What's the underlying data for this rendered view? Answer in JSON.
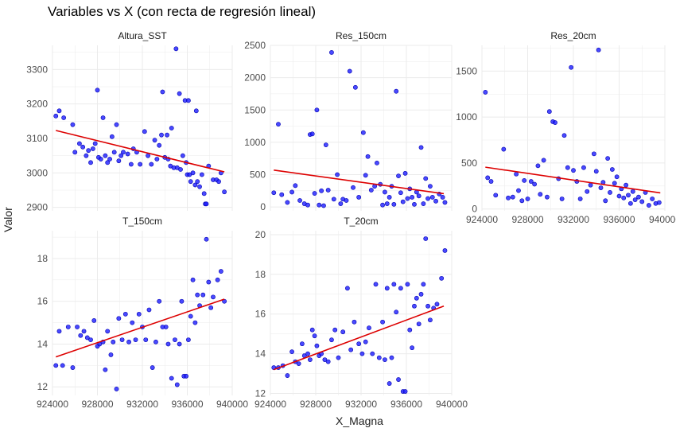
{
  "title": "Variables vs X (con recta de regresión lineal)",
  "xlabel": "X_Magna",
  "ylabel": "Valor",
  "colors": {
    "points": "#1c1cff",
    "point_edge": "#0000b0",
    "regression": "#dd0000",
    "grid": "#ebebeb"
  },
  "chart_data": [
    {
      "type": "scatter",
      "title": "Altura_SST",
      "xlim": [
        924000,
        940000
      ],
      "ylim": [
        2890,
        3370
      ],
      "xticks": [],
      "yticks": [
        2900,
        3000,
        3100,
        3200,
        3300
      ],
      "regression": [
        [
          924300,
          3123
        ],
        [
          939300,
          3003
        ]
      ],
      "points": [
        [
          924300,
          3165
        ],
        [
          924600,
          3180
        ],
        [
          925000,
          3160
        ],
        [
          925800,
          3140
        ],
        [
          926000,
          3060
        ],
        [
          926400,
          3085
        ],
        [
          926700,
          3075
        ],
        [
          927000,
          3050
        ],
        [
          927200,
          3065
        ],
        [
          927400,
          3030
        ],
        [
          927600,
          3070
        ],
        [
          927800,
          3085
        ],
        [
          928000,
          3240
        ],
        [
          928100,
          3045
        ],
        [
          928300,
          3040
        ],
        [
          928500,
          3160
        ],
        [
          928700,
          3050
        ],
        [
          928900,
          3030
        ],
        [
          929100,
          3040
        ],
        [
          929300,
          3105
        ],
        [
          929500,
          3060
        ],
        [
          929700,
          3140
        ],
        [
          929900,
          3035
        ],
        [
          930100,
          3050
        ],
        [
          930300,
          3060
        ],
        [
          930700,
          3055
        ],
        [
          931000,
          3025
        ],
        [
          931200,
          3070
        ],
        [
          931500,
          3060
        ],
        [
          931800,
          3025
        ],
        [
          932200,
          3120
        ],
        [
          932500,
          3050
        ],
        [
          932800,
          3025
        ],
        [
          933100,
          3095
        ],
        [
          933300,
          3040
        ],
        [
          933500,
          3080
        ],
        [
          933700,
          3110
        ],
        [
          933800,
          3235
        ],
        [
          934000,
          3045
        ],
        [
          934200,
          3110
        ],
        [
          934300,
          3040
        ],
        [
          934500,
          3020
        ],
        [
          934600,
          3130
        ],
        [
          934800,
          3015
        ],
        [
          935000,
          3360
        ],
        [
          935100,
          3015
        ],
        [
          935300,
          3230
        ],
        [
          935400,
          3010
        ],
        [
          935600,
          3050
        ],
        [
          935800,
          3210
        ],
        [
          935900,
          3030
        ],
        [
          936000,
          2995
        ],
        [
          936100,
          3210
        ],
        [
          936200,
          2995
        ],
        [
          936300,
          2975
        ],
        [
          936500,
          3000
        ],
        [
          936700,
          2965
        ],
        [
          936800,
          3180
        ],
        [
          936900,
          2975
        ],
        [
          937100,
          2960
        ],
        [
          937300,
          2995
        ],
        [
          937500,
          2940
        ],
        [
          937600,
          2910
        ],
        [
          937700,
          2910
        ],
        [
          937900,
          3020
        ],
        [
          938300,
          2980
        ],
        [
          938600,
          2980
        ],
        [
          938800,
          2975
        ],
        [
          939000,
          3000
        ],
        [
          939300,
          2945
        ]
      ]
    },
    {
      "type": "scatter",
      "title": "Res_150cm",
      "xlim": [
        924000,
        940000
      ],
      "ylim": [
        -60,
        2500
      ],
      "xticks": [],
      "yticks": [
        0,
        500,
        1000,
        1500,
        2000,
        2500
      ],
      "regression": [
        [
          924300,
          570
        ],
        [
          939300,
          205
        ]
      ],
      "points": [
        [
          924300,
          220
        ],
        [
          924700,
          1280
        ],
        [
          925000,
          190
        ],
        [
          925500,
          70
        ],
        [
          925900,
          230
        ],
        [
          926200,
          330
        ],
        [
          926600,
          100
        ],
        [
          927000,
          50
        ],
        [
          927300,
          30
        ],
        [
          927500,
          1120
        ],
        [
          927700,
          1130
        ],
        [
          927900,
          210
        ],
        [
          928100,
          1500
        ],
        [
          928300,
          30
        ],
        [
          928500,
          250
        ],
        [
          928700,
          20
        ],
        [
          928900,
          960
        ],
        [
          929100,
          260
        ],
        [
          929400,
          2390
        ],
        [
          929600,
          120
        ],
        [
          929900,
          500
        ],
        [
          930200,
          50
        ],
        [
          930400,
          120
        ],
        [
          930700,
          100
        ],
        [
          931000,
          2100
        ],
        [
          931300,
          300
        ],
        [
          931500,
          1850
        ],
        [
          931800,
          150
        ],
        [
          932200,
          1150
        ],
        [
          932400,
          490
        ],
        [
          932600,
          780
        ],
        [
          932900,
          260
        ],
        [
          933200,
          320
        ],
        [
          933400,
          680
        ],
        [
          933700,
          350
        ],
        [
          933900,
          30
        ],
        [
          934100,
          230
        ],
        [
          934300,
          50
        ],
        [
          934500,
          150
        ],
        [
          934700,
          320
        ],
        [
          934900,
          40
        ],
        [
          935100,
          1790
        ],
        [
          935300,
          480
        ],
        [
          935500,
          220
        ],
        [
          935700,
          80
        ],
        [
          935900,
          520
        ],
        [
          936100,
          130
        ],
        [
          936300,
          280
        ],
        [
          936500,
          150
        ],
        [
          936700,
          40
        ],
        [
          936900,
          230
        ],
        [
          937100,
          170
        ],
        [
          937300,
          920
        ],
        [
          937500,
          50
        ],
        [
          937700,
          440
        ],
        [
          937900,
          130
        ],
        [
          938100,
          320
        ],
        [
          938300,
          150
        ],
        [
          938600,
          90
        ],
        [
          938900,
          200
        ],
        [
          939200,
          150
        ],
        [
          939400,
          70
        ]
      ]
    },
    {
      "type": "scatter",
      "title": "Res_20cm",
      "xlim": [
        924000,
        940000
      ],
      "ylim": [
        -20,
        1780
      ],
      "xticks": [
        924000,
        928000,
        932000,
        936000,
        940000
      ],
      "yticks": [
        0,
        500,
        1000,
        1500
      ],
      "regression": [
        [
          924300,
          455
        ],
        [
          939600,
          175
        ]
      ],
      "points": [
        [
          924300,
          1270
        ],
        [
          924500,
          340
        ],
        [
          924800,
          300
        ],
        [
          925200,
          150
        ],
        [
          925900,
          650
        ],
        [
          926300,
          120
        ],
        [
          926700,
          130
        ],
        [
          927000,
          380
        ],
        [
          927200,
          200
        ],
        [
          927500,
          90
        ],
        [
          927700,
          310
        ],
        [
          928000,
          110
        ],
        [
          928300,
          300
        ],
        [
          928600,
          270
        ],
        [
          928900,
          470
        ],
        [
          929100,
          160
        ],
        [
          929400,
          530
        ],
        [
          929700,
          130
        ],
        [
          929900,
          1060
        ],
        [
          930200,
          950
        ],
        [
          930400,
          940
        ],
        [
          930700,
          330
        ],
        [
          931000,
          110
        ],
        [
          931200,
          800
        ],
        [
          931500,
          450
        ],
        [
          931800,
          1540
        ],
        [
          932000,
          420
        ],
        [
          932300,
          300
        ],
        [
          932600,
          110
        ],
        [
          932900,
          450
        ],
        [
          933200,
          190
        ],
        [
          933500,
          260
        ],
        [
          933800,
          600
        ],
        [
          934000,
          410
        ],
        [
          934200,
          1730
        ],
        [
          934400,
          230
        ],
        [
          934600,
          290
        ],
        [
          934800,
          90
        ],
        [
          935000,
          550
        ],
        [
          935200,
          180
        ],
        [
          935400,
          430
        ],
        [
          935600,
          280
        ],
        [
          935800,
          350
        ],
        [
          936000,
          140
        ],
        [
          936200,
          220
        ],
        [
          936400,
          120
        ],
        [
          936600,
          260
        ],
        [
          936800,
          150
        ],
        [
          937000,
          60
        ],
        [
          937200,
          190
        ],
        [
          937400,
          100
        ],
        [
          937700,
          130
        ],
        [
          938000,
          80
        ],
        [
          938300,
          180
        ],
        [
          938600,
          40
        ],
        [
          938900,
          110
        ],
        [
          939200,
          60
        ],
        [
          939500,
          70
        ]
      ]
    },
    {
      "type": "scatter",
      "title": "T_150cm",
      "xlim": [
        924000,
        940000
      ],
      "ylim": [
        11.6,
        19.3
      ],
      "xticks": [
        924000,
        928000,
        932000,
        936000,
        940000
      ],
      "yticks": [
        12,
        14,
        16,
        18
      ],
      "regression": [
        [
          924300,
          13.4
        ],
        [
          939300,
          16.1
        ]
      ],
      "points": [
        [
          924300,
          13.0
        ],
        [
          924600,
          14.6
        ],
        [
          924900,
          13.0
        ],
        [
          925400,
          14.8
        ],
        [
          925800,
          12.9
        ],
        [
          926200,
          14.8
        ],
        [
          926500,
          14.4
        ],
        [
          926800,
          14.6
        ],
        [
          927100,
          14.3
        ],
        [
          927400,
          14.2
        ],
        [
          927700,
          15.1
        ],
        [
          928000,
          13.9
        ],
        [
          928200,
          14.0
        ],
        [
          928500,
          14.1
        ],
        [
          928700,
          12.8
        ],
        [
          928900,
          14.6
        ],
        [
          929200,
          13.5
        ],
        [
          929400,
          14.1
        ],
        [
          929700,
          11.9
        ],
        [
          929900,
          15.2
        ],
        [
          930200,
          14.2
        ],
        [
          930500,
          15.4
        ],
        [
          930800,
          14.1
        ],
        [
          931100,
          15.0
        ],
        [
          931400,
          14.2
        ],
        [
          931700,
          15.4
        ],
        [
          932000,
          14.8
        ],
        [
          932300,
          14.2
        ],
        [
          932600,
          15.6
        ],
        [
          932900,
          12.9
        ],
        [
          933200,
          14.1
        ],
        [
          933500,
          16.0
        ],
        [
          933800,
          14.8
        ],
        [
          934100,
          14.8
        ],
        [
          934300,
          14.0
        ],
        [
          934600,
          12.4
        ],
        [
          934900,
          14.2
        ],
        [
          935100,
          12.1
        ],
        [
          935300,
          14.0
        ],
        [
          935500,
          16.0
        ],
        [
          935700,
          12.5
        ],
        [
          935900,
          12.5
        ],
        [
          936100,
          14.2
        ],
        [
          936300,
          15.3
        ],
        [
          936500,
          17.0
        ],
        [
          936700,
          15.0
        ],
        [
          936900,
          16.3
        ],
        [
          937100,
          15.8
        ],
        [
          937400,
          16.3
        ],
        [
          937700,
          18.9
        ],
        [
          937900,
          16.9
        ],
        [
          938100,
          15.7
        ],
        [
          938300,
          16.2
        ],
        [
          938700,
          17.0
        ],
        [
          939000,
          17.4
        ],
        [
          939300,
          16.0
        ]
      ]
    },
    {
      "type": "scatter",
      "title": "T_20cm",
      "xlim": [
        924000,
        940000
      ],
      "ylim": [
        11.9,
        20.2
      ],
      "xticks": [
        924000,
        928000,
        932000,
        936000,
        940000
      ],
      "yticks": [
        12,
        14,
        16,
        18,
        20
      ],
      "regression": [
        [
          924300,
          13.2
        ],
        [
          939300,
          16.4
        ]
      ],
      "points": [
        [
          924300,
          13.3
        ],
        [
          924700,
          13.3
        ],
        [
          925100,
          13.4
        ],
        [
          925500,
          12.9
        ],
        [
          925900,
          14.1
        ],
        [
          926200,
          13.6
        ],
        [
          926500,
          13.5
        ],
        [
          926800,
          14.5
        ],
        [
          927000,
          13.9
        ],
        [
          927300,
          14.0
        ],
        [
          927500,
          13.7
        ],
        [
          927700,
          15.2
        ],
        [
          927900,
          14.9
        ],
        [
          928100,
          14.4
        ],
        [
          928300,
          13.9
        ],
        [
          928500,
          14.0
        ],
        [
          928800,
          13.7
        ],
        [
          929100,
          13.6
        ],
        [
          929400,
          14.7
        ],
        [
          929700,
          15.2
        ],
        [
          930000,
          13.8
        ],
        [
          930400,
          15.1
        ],
        [
          930800,
          17.3
        ],
        [
          931100,
          14.2
        ],
        [
          931400,
          15.6
        ],
        [
          931800,
          14.5
        ],
        [
          932100,
          14.0
        ],
        [
          932400,
          14.6
        ],
        [
          932700,
          15.3
        ],
        [
          933000,
          14.0
        ],
        [
          933300,
          17.5
        ],
        [
          933600,
          13.8
        ],
        [
          933900,
          15.6
        ],
        [
          934100,
          13.7
        ],
        [
          934300,
          17.3
        ],
        [
          934500,
          12.5
        ],
        [
          934700,
          13.8
        ],
        [
          934900,
          17.5
        ],
        [
          935100,
          16.1
        ],
        [
          935300,
          12.7
        ],
        [
          935500,
          17.3
        ],
        [
          935700,
          12.1
        ],
        [
          935900,
          12.1
        ],
        [
          936100,
          17.5
        ],
        [
          936300,
          15.2
        ],
        [
          936500,
          14.3
        ],
        [
          936700,
          16.4
        ],
        [
          936900,
          16.8
        ],
        [
          937100,
          15.5
        ],
        [
          937300,
          17.0
        ],
        [
          937500,
          17.5
        ],
        [
          937700,
          19.8
        ],
        [
          937900,
          16.4
        ],
        [
          938100,
          15.7
        ],
        [
          938400,
          16.3
        ],
        [
          938700,
          16.5
        ],
        [
          939100,
          17.8
        ],
        [
          939400,
          19.2
        ]
      ]
    }
  ]
}
